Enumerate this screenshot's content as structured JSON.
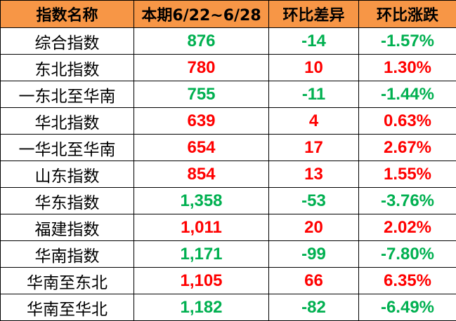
{
  "colors": {
    "header_bg": "#F79646",
    "up": "#FF0000",
    "down": "#00B050"
  },
  "headers": [
    "指数名称",
    "本期6/22~6/28",
    "环比差异",
    "环比涨跌"
  ],
  "rows": [
    {
      "name": "综合指数",
      "value": "876",
      "diff": "-14",
      "pct": "-1.57%",
      "trend": "down"
    },
    {
      "name": "东北指数",
      "value": "780",
      "diff": "10",
      "pct": "1.30%",
      "trend": "up"
    },
    {
      "name": "一东北至华南",
      "value": "755",
      "diff": "-11",
      "pct": "-1.44%",
      "trend": "down"
    },
    {
      "name": "华北指数",
      "value": "639",
      "diff": "4",
      "pct": "0.63%",
      "trend": "up"
    },
    {
      "name": "一华北至华南",
      "value": "654",
      "diff": "17",
      "pct": "2.67%",
      "trend": "up"
    },
    {
      "name": "山东指数",
      "value": "854",
      "diff": "13",
      "pct": "1.55%",
      "trend": "up"
    },
    {
      "name": "华东指数",
      "value": "1,358",
      "diff": "-53",
      "pct": "-3.76%",
      "trend": "down"
    },
    {
      "name": "福建指数",
      "value": "1,011",
      "diff": "20",
      "pct": "2.02%",
      "trend": "up"
    },
    {
      "name": "华南指数",
      "value": "1,171",
      "diff": "-99",
      "pct": "-7.80%",
      "trend": "down"
    },
    {
      "name": "华南至东北",
      "value": "1,105",
      "diff": "66",
      "pct": "6.35%",
      "trend": "up"
    },
    {
      "name": "华南至华北",
      "value": "1,182",
      "diff": "-82",
      "pct": "-6.49%",
      "trend": "down"
    }
  ]
}
